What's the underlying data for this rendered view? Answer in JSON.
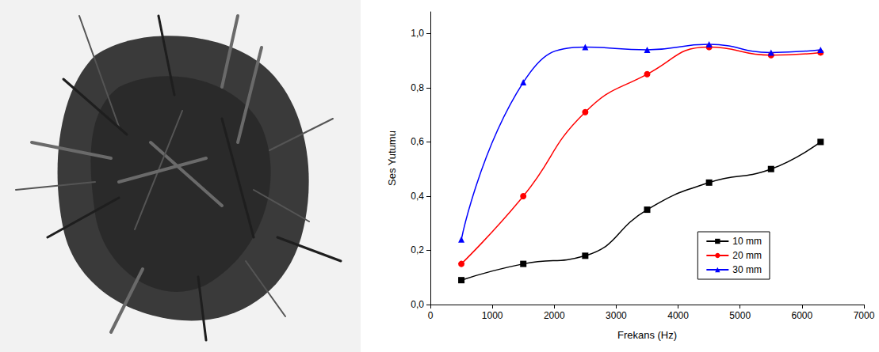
{
  "chart_data": {
    "type": "line",
    "x_label": "Frekans (Hz)",
    "y_label": "Ses Yutumu",
    "x": [
      500,
      1500,
      2500,
      3500,
      4500,
      5500,
      6300
    ],
    "series": [
      {
        "name": "10 mm",
        "color": "#000000",
        "marker": "square",
        "line_style": "solid",
        "values": [
          0.09,
          0.15,
          0.18,
          0.35,
          0.45,
          0.5,
          0.6
        ]
      },
      {
        "name": "20 mm",
        "color": "#ff0000",
        "marker": "circle",
        "line_style": "solid",
        "values": [
          0.15,
          0.4,
          0.71,
          0.85,
          0.95,
          0.92,
          0.93
        ]
      },
      {
        "name": "30 mm",
        "color": "#0000ff",
        "marker": "triangle",
        "line_style": "solid",
        "values": [
          0.24,
          0.82,
          0.95,
          0.94,
          0.96,
          0.93,
          0.94
        ]
      }
    ],
    "xlim": [
      0,
      7000
    ],
    "xticks": [
      0,
      1000,
      2000,
      3000,
      4000,
      5000,
      6000,
      7000
    ],
    "ylim": [
      0,
      1.08
    ],
    "yticks": [
      {
        "value": 0,
        "label": "0,0"
      },
      {
        "value": 0.2,
        "label": "0,2"
      },
      {
        "value": 0.4,
        "label": "0,4"
      },
      {
        "value": 0.6,
        "label": "0,6"
      },
      {
        "value": 0.8,
        "label": "0,8"
      },
      {
        "value": 1.0,
        "label": "1,0"
      }
    ],
    "grid": false,
    "legend": "lower right"
  }
}
